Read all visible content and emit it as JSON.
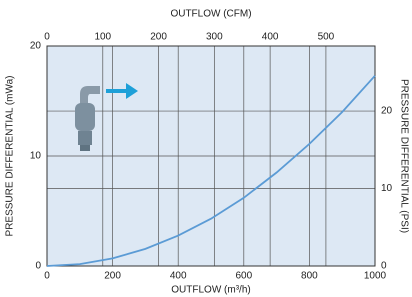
{
  "chart_data": {
    "type": "line",
    "xlabel": "OUTFLOW (m³/h)",
    "ylabel": "PRESSURE DIFFERENTIAL (mWa)",
    "x2label": "OUTFLOW (CFM)",
    "y2label": "PRESSURE DIFFERENTIAL (PSI)",
    "x": [
      0,
      100,
      200,
      300,
      400,
      500,
      600,
      700,
      800,
      900,
      1000
    ],
    "values": [
      0,
      0.17,
      0.69,
      1.56,
      2.77,
      4.3,
      6.2,
      8.5,
      11.1,
      14.0,
      17.3
    ],
    "color": "#5b9bd5",
    "xlim": [
      0,
      1000
    ],
    "xticks": [
      0,
      200,
      400,
      600,
      800,
      1000
    ],
    "ylim": [
      0,
      20
    ],
    "yticks": [
      0,
      10,
      20
    ],
    "x2lim": [
      0,
      588
    ],
    "x2ticks": [
      0,
      100,
      200,
      300,
      400,
      500
    ],
    "y2lim": [
      0,
      28.4
    ],
    "y2ticks": [
      0,
      10,
      20
    ],
    "grid": true,
    "background": "#dde8f4"
  }
}
